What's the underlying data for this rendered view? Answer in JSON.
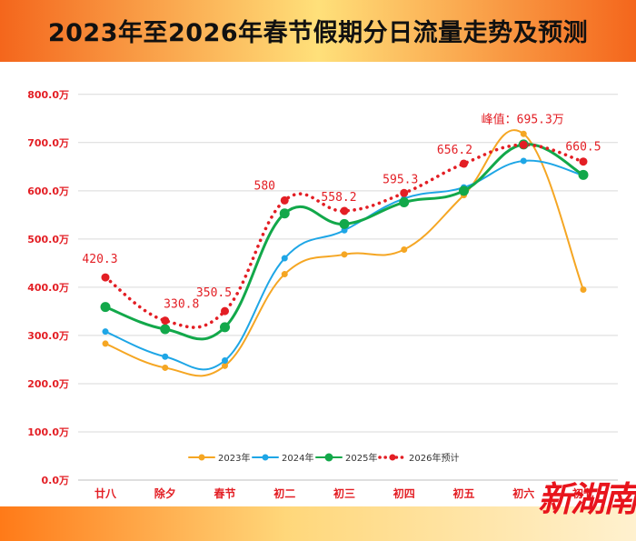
{
  "title": "2023年至2026年春节假期分日流量走势及预测",
  "watermark": {
    "text": "新湖南"
  },
  "chart_data": {
    "type": "line",
    "categories": [
      "廿八",
      "除夕",
      "春节",
      "初二",
      "初三",
      "初四",
      "初五",
      "初六",
      "初七"
    ],
    "yticks": [
      "0.0万",
      "100.0万",
      "200.0万",
      "300.0万",
      "400.0万",
      "500.0万",
      "600.0万",
      "700.0万",
      "800.0万"
    ],
    "ylim": [
      0,
      800
    ],
    "grid": true,
    "legend_position": "bottom",
    "series": [
      {
        "name": "2023年",
        "color": "#f5a623",
        "style": "solid",
        "values": [
          283,
          233,
          237,
          427,
          468,
          478,
          591,
          718,
          395
        ]
      },
      {
        "name": "2024年",
        "color": "#1ea6e6",
        "style": "solid",
        "values": [
          308,
          256,
          248,
          460,
          518,
          584,
          607,
          662,
          632
        ]
      },
      {
        "name": "2025年",
        "color": "#12a84a",
        "style": "solid",
        "values": [
          359,
          313,
          317,
          553,
          531,
          576,
          600,
          696,
          633
        ]
      },
      {
        "name": "2026年预计",
        "color": "#e31e24",
        "style": "dotted",
        "values": [
          420.3,
          330.8,
          350.5,
          580,
          558.2,
          595.3,
          656.2,
          695.3,
          660.5
        ],
        "labels": [
          "420.3",
          "330.8",
          "350.5",
          "580",
          "558.2",
          "595.3",
          "656.2",
          "峰值：695.3万",
          "660.5"
        ]
      }
    ]
  }
}
